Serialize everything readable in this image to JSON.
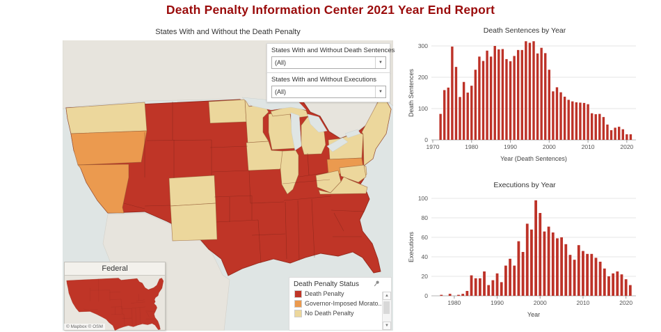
{
  "header": {
    "title": "Death Penalty Information Center  2021 Year End Report"
  },
  "colors": {
    "title_red": "#9a0b0b",
    "bar_red": "#bd3228",
    "death_penalty": "#bf3527",
    "moratorium": "#eb9a4f",
    "no_death_penalty": "#ecd79c",
    "water": "#dfe5e4",
    "land": "#e7e4dd"
  },
  "map": {
    "title": "States With and Without the Death Penalty",
    "attribution": "© Mapbox  © OSM",
    "filters": [
      {
        "label": "States With and Without Death Sentences",
        "value": "(All)"
      },
      {
        "label": "States With and Without Executions",
        "value": "(All)"
      }
    ],
    "inset": {
      "title": "Federal"
    },
    "legend": {
      "title": "Death Penalty Status",
      "items": [
        {
          "label": "Death Penalty",
          "key": "death_penalty"
        },
        {
          "label": "Governor-Imposed Morato..",
          "key": "moratorium"
        },
        {
          "label": "No Death Penalty",
          "key": "no_death_penalty"
        }
      ]
    }
  },
  "chart_data": [
    {
      "type": "bar",
      "title": "Death Sentences by Year",
      "ylabel": "Death Sentences",
      "xlabel": "Year (Death Sentences)",
      "ylim": [
        0,
        300
      ],
      "yticks": [
        0,
        100,
        200,
        300
      ],
      "xticks": [
        1970,
        1980,
        1990,
        2000,
        2010,
        2020
      ],
      "xlim": [
        1970,
        2022
      ],
      "grid": true,
      "legend_position": "none",
      "years": [
        1972,
        1973,
        1974,
        1975,
        1976,
        1977,
        1978,
        1979,
        1980,
        1981,
        1982,
        1983,
        1984,
        1985,
        1986,
        1987,
        1988,
        1989,
        1990,
        1991,
        1992,
        1993,
        1994,
        1995,
        1996,
        1997,
        1998,
        1999,
        2000,
        2001,
        2002,
        2003,
        2004,
        2005,
        2006,
        2007,
        2008,
        2009,
        2010,
        2011,
        2012,
        2013,
        2014,
        2015,
        2016,
        2017,
        2018,
        2019,
        2020,
        2021
      ],
      "values": [
        83,
        159,
        167,
        298,
        233,
        137,
        185,
        151,
        173,
        224,
        266,
        252,
        285,
        266,
        300,
        289,
        290,
        258,
        251,
        268,
        287,
        287,
        315,
        310,
        315,
        276,
        294,
        277,
        224,
        155,
        168,
        152,
        138,
        128,
        123,
        120,
        119,
        118,
        114,
        85,
        82,
        83,
        73,
        49,
        31,
        39,
        42,
        34,
        18,
        18
      ]
    },
    {
      "type": "bar",
      "title": "Executions by Year",
      "ylabel": "Executions",
      "xlabel": "Year",
      "ylim": [
        0,
        100
      ],
      "yticks": [
        0,
        20,
        40,
        60,
        80,
        100
      ],
      "xticks": [
        1980,
        1990,
        2000,
        2010,
        2020
      ],
      "xlim": [
        1975,
        2022
      ],
      "grid": true,
      "legend_position": "none",
      "years": [
        1977,
        1978,
        1979,
        1980,
        1981,
        1982,
        1983,
        1984,
        1985,
        1986,
        1987,
        1988,
        1989,
        1990,
        1991,
        1992,
        1993,
        1994,
        1995,
        1996,
        1997,
        1998,
        1999,
        2000,
        2001,
        2002,
        2003,
        2004,
        2005,
        2006,
        2007,
        2008,
        2009,
        2010,
        2011,
        2012,
        2013,
        2014,
        2015,
        2016,
        2017,
        2018,
        2019,
        2020,
        2021
      ],
      "values": [
        1,
        0,
        2,
        0,
        1,
        2,
        5,
        21,
        18,
        18,
        25,
        11,
        16,
        23,
        14,
        31,
        38,
        31,
        56,
        45,
        74,
        68,
        98,
        85,
        66,
        71,
        65,
        59,
        60,
        53,
        42,
        37,
        52,
        46,
        43,
        43,
        39,
        35,
        28,
        20,
        23,
        25,
        22,
        17,
        11
      ]
    }
  ]
}
